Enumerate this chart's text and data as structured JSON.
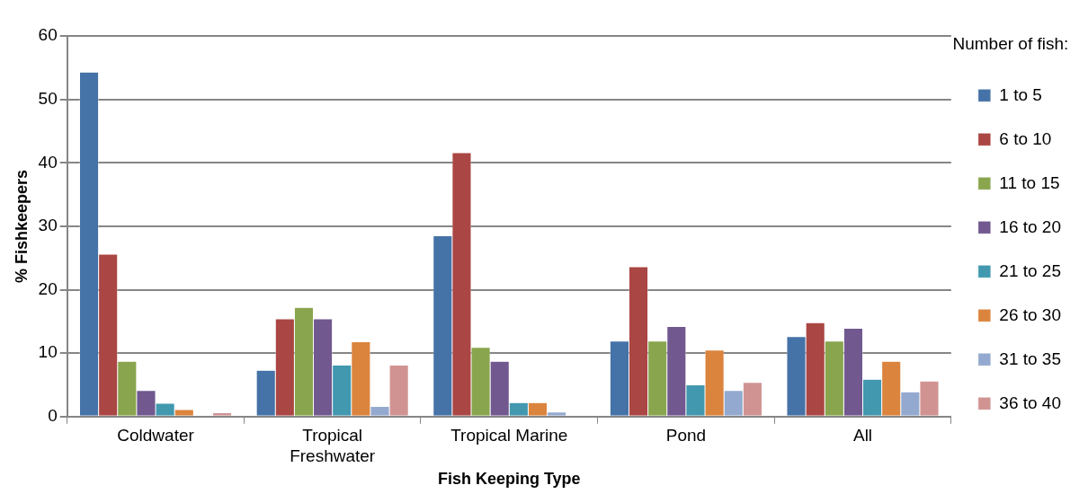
{
  "chart_data": {
    "type": "bar",
    "xlabel": "Fish Keeping Type",
    "ylabel": "% Fishkeepers",
    "legend_title": "Number of fish:",
    "categories": [
      "Coldwater",
      "Tropical Freshwater",
      "Tropical Marine",
      "Pond",
      "All"
    ],
    "ylim": [
      0,
      60
    ],
    "yticks": [
      0,
      10,
      20,
      30,
      40,
      50,
      60
    ],
    "grid": "y",
    "legend": "right",
    "series": [
      {
        "name": "1 to 5",
        "color": "#4572a7",
        "values": [
          54.3,
          7.3,
          28.5,
          11.9,
          12.6
        ]
      },
      {
        "name": "6 to 10",
        "color": "#aa4643",
        "values": [
          25.6,
          15.4,
          41.6,
          23.6,
          14.8
        ]
      },
      {
        "name": "11 to 15",
        "color": "#89a54e",
        "values": [
          8.7,
          17.2,
          10.9,
          11.9,
          11.9
        ]
      },
      {
        "name": "16 to 20",
        "color": "#71588f",
        "values": [
          4.1,
          15.4,
          8.7,
          14.2,
          13.9
        ]
      },
      {
        "name": "21 to 25",
        "color": "#4198af",
        "values": [
          2.1,
          8.1,
          2.2,
          5.0,
          5.9
        ]
      },
      {
        "name": "26 to 30",
        "color": "#db843d",
        "values": [
          1.1,
          11.8,
          2.2,
          10.5,
          8.7
        ]
      },
      {
        "name": "31 to 35",
        "color": "#93a9cf",
        "values": [
          0,
          1.6,
          0.7,
          4.1,
          3.9
        ]
      },
      {
        "name": "36 to 40",
        "color": "#d19392",
        "values": [
          0.6,
          8.1,
          0,
          5.4,
          5.6
        ]
      }
    ]
  }
}
